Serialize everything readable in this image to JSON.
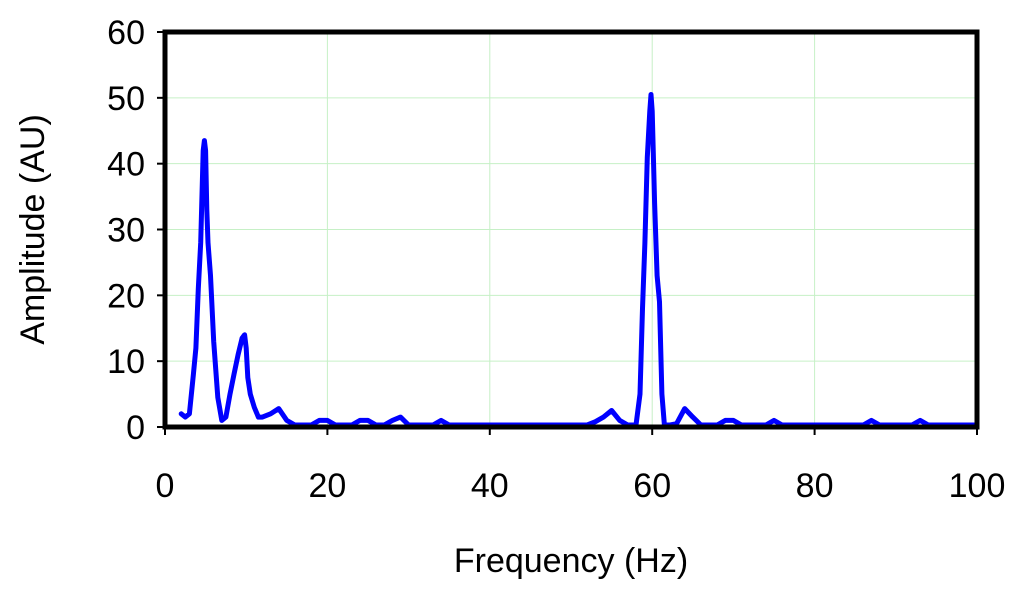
{
  "chart_data": {
    "type": "line",
    "title": "",
    "xlabel": "Frequency (Hz)",
    "ylabel": "Amplitude (AU)",
    "xlim": [
      0,
      100
    ],
    "ylim": [
      0,
      60
    ],
    "x_ticks": [
      0,
      20,
      40,
      60,
      80,
      100
    ],
    "y_ticks": [
      0,
      10,
      20,
      30,
      40,
      50,
      60
    ],
    "x_tick_labels": [
      "0",
      "20",
      "40",
      "60",
      "80",
      "100"
    ],
    "y_tick_labels": [
      "0",
      "10",
      "20",
      "30",
      "40",
      "50",
      "60"
    ],
    "grid": true,
    "legend": "none",
    "colors": {
      "series": "#0000ff",
      "grid": "#c6f0c6",
      "frame": "#000000"
    },
    "series": [
      {
        "x": [
          2,
          2.5,
          3,
          3.5,
          3.8,
          4.1,
          4.4,
          4.7,
          4.85,
          5,
          5.15,
          5.3,
          5.6,
          6,
          6.5,
          7,
          7.5,
          8,
          8.5,
          9,
          9.5,
          9.8,
          10,
          10.2,
          10.5,
          11,
          11.5,
          12,
          13,
          14,
          15,
          16,
          17,
          18,
          19,
          20,
          21,
          22,
          23,
          24,
          25,
          26,
          27,
          28,
          29,
          30,
          31,
          32,
          33,
          34,
          35,
          36,
          37,
          38,
          39,
          40,
          41,
          42,
          43,
          44,
          45,
          46,
          47,
          48,
          49,
          50,
          51,
          52,
          53,
          54,
          55,
          56,
          57,
          58,
          58.5,
          58.8,
          59.1,
          59.4,
          59.7,
          59.85,
          60,
          60.15,
          60.3,
          60.6,
          60.9,
          61.2,
          61.5,
          61.8,
          62.2,
          63,
          64,
          65,
          66,
          67,
          68,
          69,
          70,
          71,
          72,
          73,
          74,
          75,
          76,
          77,
          78,
          79,
          80,
          81,
          82,
          83,
          84,
          85,
          86,
          87,
          88,
          89,
          90,
          91,
          92,
          93,
          94,
          95,
          96,
          97,
          98,
          99,
          100
        ],
        "y": [
          2,
          1.5,
          2,
          8,
          12,
          21,
          28,
          42,
          43.5,
          42,
          33,
          28,
          23,
          13,
          4.5,
          1,
          1.5,
          5,
          8,
          11,
          13.5,
          14,
          12,
          7.5,
          5,
          3,
          1.5,
          1.5,
          2,
          2.8,
          1,
          0.3,
          0.3,
          0.3,
          1,
          1,
          0.3,
          0.3,
          0.3,
          1,
          1,
          0.3,
          0.3,
          1,
          1.5,
          0.3,
          0.3,
          0.3,
          0.3,
          1,
          0.3,
          0.3,
          0.3,
          0.3,
          0.3,
          0.3,
          0.3,
          0.3,
          0.3,
          0.3,
          0.3,
          0.3,
          0.3,
          0.3,
          0.3,
          0.3,
          0.3,
          0.3,
          0.8,
          1.5,
          2.5,
          1,
          0.3,
          0.3,
          5,
          18,
          28,
          41,
          48,
          50.5,
          48,
          41,
          34,
          23,
          19,
          5,
          0.3,
          0.3,
          0.3,
          0.5,
          2.8,
          1.5,
          0.3,
          0.3,
          0.3,
          1,
          1,
          0.3,
          0.3,
          0.3,
          0.3,
          1,
          0.3,
          0.3,
          0.3,
          0.3,
          0.3,
          0.3,
          0.3,
          0.3,
          0.3,
          0.3,
          0.3,
          1,
          0.3,
          0.3,
          0.3,
          0.3,
          0.3,
          1,
          0.3,
          0.3,
          0.3,
          0.3,
          0.3,
          0.3,
          0.3
        ]
      }
    ]
  }
}
